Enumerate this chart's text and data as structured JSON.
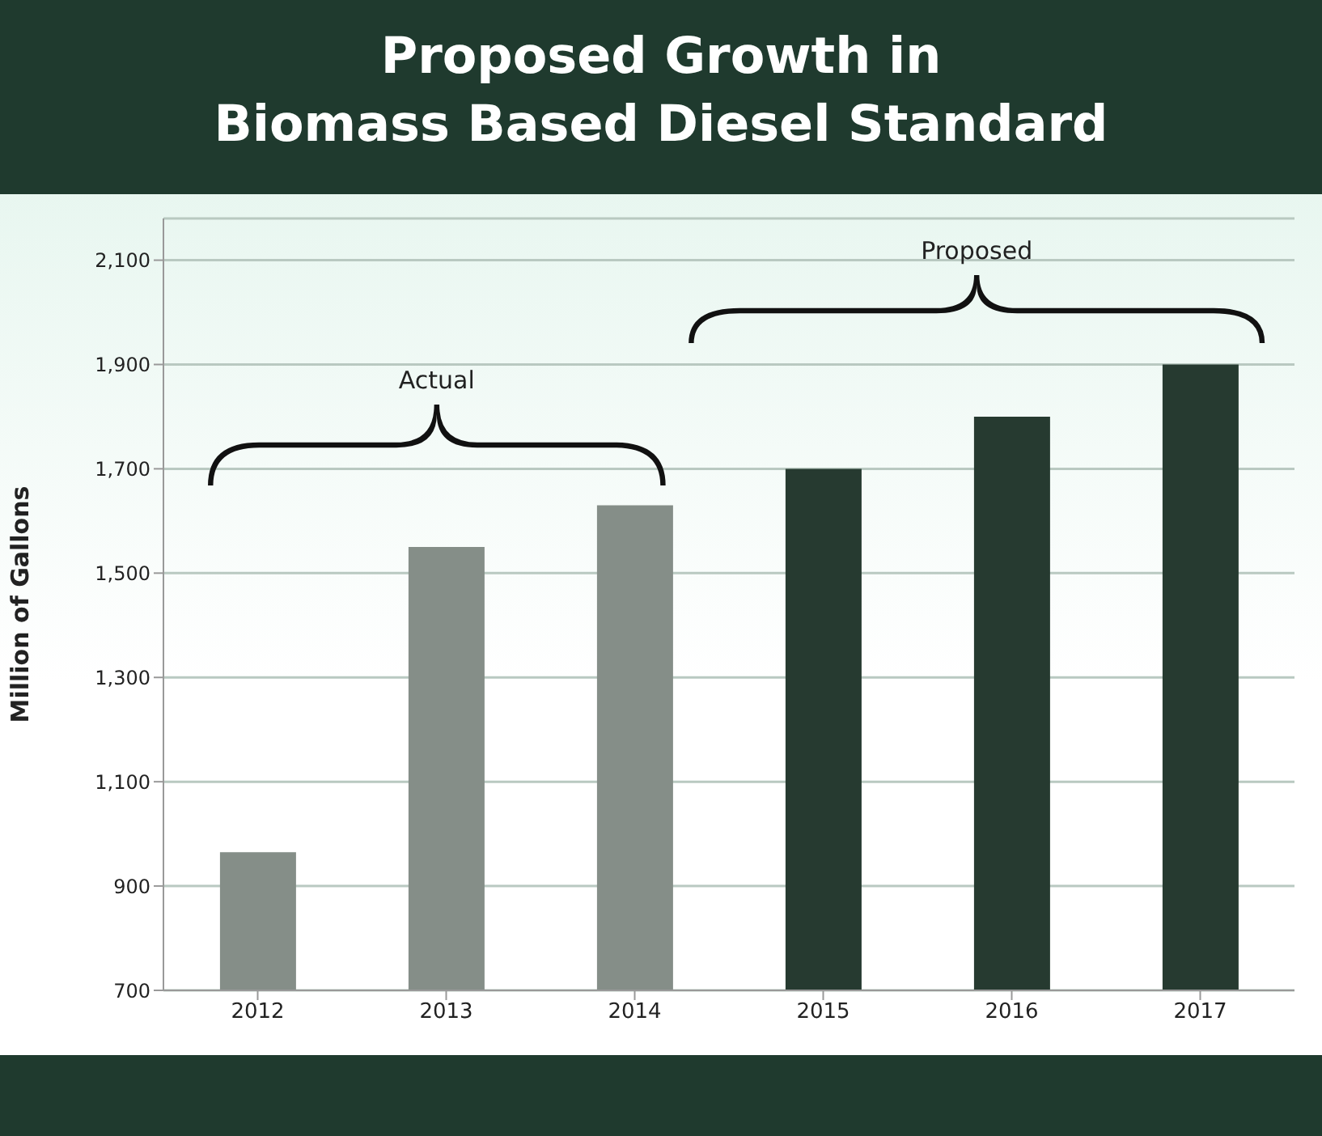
{
  "chart_data": {
    "type": "bar",
    "title": "Proposed Growth in\nBiomass Based Diesel Standard",
    "ylabel": "Million of Gallons",
    "categories": [
      "2012",
      "2013",
      "2014",
      "2015",
      "2016",
      "2017"
    ],
    "values": [
      965,
      1550,
      1630,
      1700,
      1800,
      1900
    ],
    "colors": [
      "#858e88",
      "#858e88",
      "#858e88",
      "#263a30",
      "#263a30",
      "#263a30"
    ],
    "ylim": [
      700,
      2180
    ],
    "yticks": [
      {
        "value": 700,
        "label": "700"
      },
      {
        "value": 900,
        "label": "900"
      },
      {
        "value": 1100,
        "label": "1,100"
      },
      {
        "value": 1300,
        "label": "1,300"
      },
      {
        "value": 1500,
        "label": "1,500"
      },
      {
        "value": 1700,
        "label": "1,700"
      },
      {
        "value": 1900,
        "label": "1,900"
      },
      {
        "value": 2100,
        "label": "2,100"
      }
    ],
    "grid": "y",
    "legend": false,
    "annotations": [
      "Actual",
      "Proposed"
    ]
  }
}
